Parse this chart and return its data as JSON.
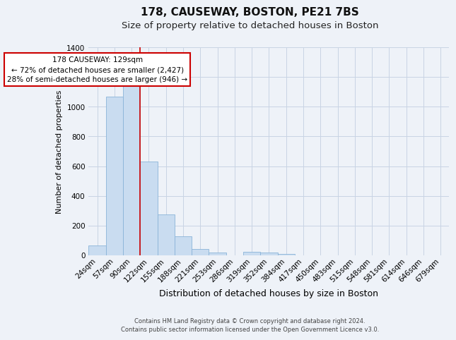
{
  "title": "178, CAUSEWAY, BOSTON, PE21 7BS",
  "subtitle": "Size of property relative to detached houses in Boston",
  "xlabel": "Distribution of detached houses by size in Boston",
  "ylabel": "Number of detached properties",
  "footer_line1": "Contains HM Land Registry data © Crown copyright and database right 2024.",
  "footer_line2": "Contains public sector information licensed under the Open Government Licence v3.0.",
  "bin_labels": [
    "24sqm",
    "57sqm",
    "90sqm",
    "122sqm",
    "155sqm",
    "188sqm",
    "221sqm",
    "253sqm",
    "286sqm",
    "319sqm",
    "352sqm",
    "384sqm",
    "417sqm",
    "450sqm",
    "483sqm",
    "515sqm",
    "548sqm",
    "581sqm",
    "614sqm",
    "646sqm",
    "679sqm"
  ],
  "bar_values": [
    65,
    1070,
    1160,
    630,
    275,
    130,
    45,
    20,
    0,
    25,
    20,
    8,
    0,
    0,
    0,
    0,
    0,
    0,
    0,
    0,
    0
  ],
  "bar_color": "#c9dcf0",
  "bar_edge_color": "#8ab4d8",
  "red_line_x": 3,
  "annotation_text_line1": "178 CAUSEWAY: 129sqm",
  "annotation_text_line2": "← 72% of detached houses are smaller (2,427)",
  "annotation_text_line3": "28% of semi-detached houses are larger (946) →",
  "annotation_box_color": "white",
  "annotation_box_edge_color": "#cc0000",
  "ylim": [
    0,
    1400
  ],
  "yticks": [
    0,
    200,
    400,
    600,
    800,
    1000,
    1200,
    1400
  ],
  "background_color": "#eef2f8",
  "grid_color": "#c8d4e4",
  "title_fontsize": 11,
  "subtitle_fontsize": 9.5,
  "xlabel_fontsize": 9,
  "ylabel_fontsize": 8,
  "tick_fontsize": 7.5,
  "footer_fontsize": 6
}
